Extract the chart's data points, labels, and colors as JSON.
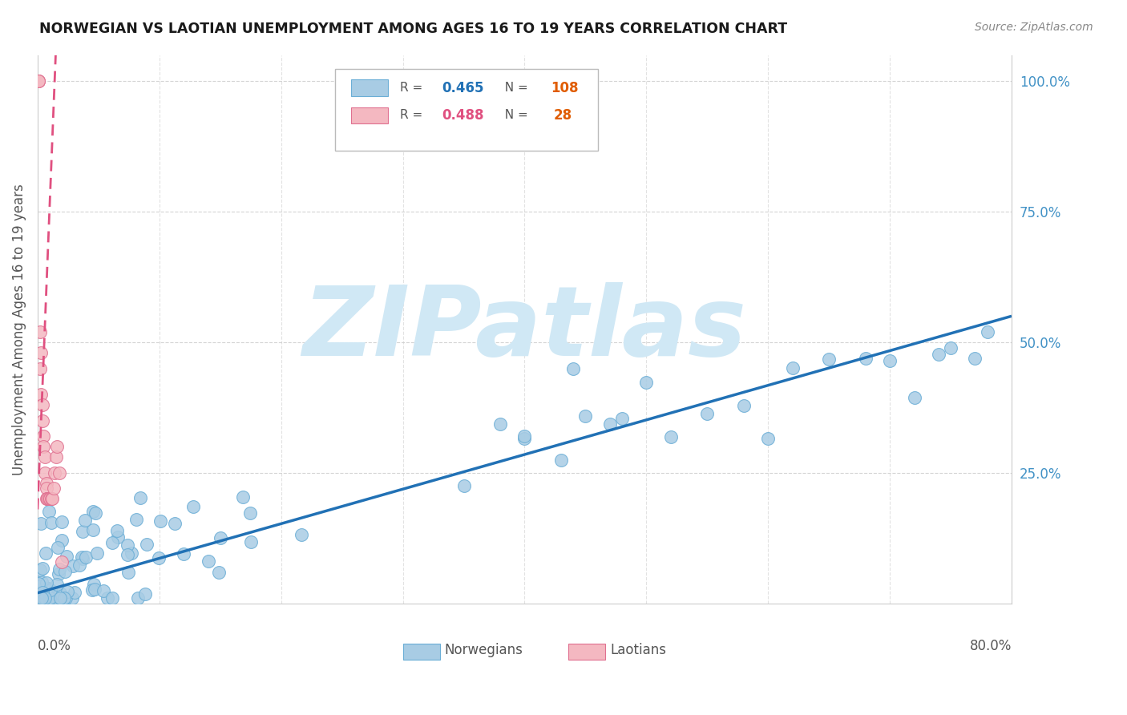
{
  "title": "NORWEGIAN VS LAOTIAN UNEMPLOYMENT AMONG AGES 16 TO 19 YEARS CORRELATION CHART",
  "source": "Source: ZipAtlas.com",
  "ylabel": "Unemployment Among Ages 16 to 19 years",
  "right_yticks": [
    "100.0%",
    "75.0%",
    "50.0%",
    "25.0%"
  ],
  "right_ytick_vals": [
    1.0,
    0.75,
    0.5,
    0.25
  ],
  "norwegian_R": 0.465,
  "norwegian_N": 108,
  "laotian_R": 0.488,
  "laotian_N": 28,
  "blue_color": "#a8cce4",
  "blue_edge": "#6baed6",
  "pink_color": "#f4b8c1",
  "pink_edge": "#e07090",
  "trend_blue": "#2171b5",
  "trend_pink": "#e05080",
  "watermark_color": "#d0e8f5",
  "watermark_text": "ZIPatlas",
  "xmin": 0.0,
  "xmax": 0.8,
  "ymin": 0.0,
  "ymax": 1.05,
  "legend_R1": "0.465",
  "legend_N1": "108",
  "legend_R2": "0.488",
  "legend_N2": "28",
  "R_color_blue": "#2171b5",
  "R_color_pink": "#e05080",
  "N_color": "#e05c00"
}
